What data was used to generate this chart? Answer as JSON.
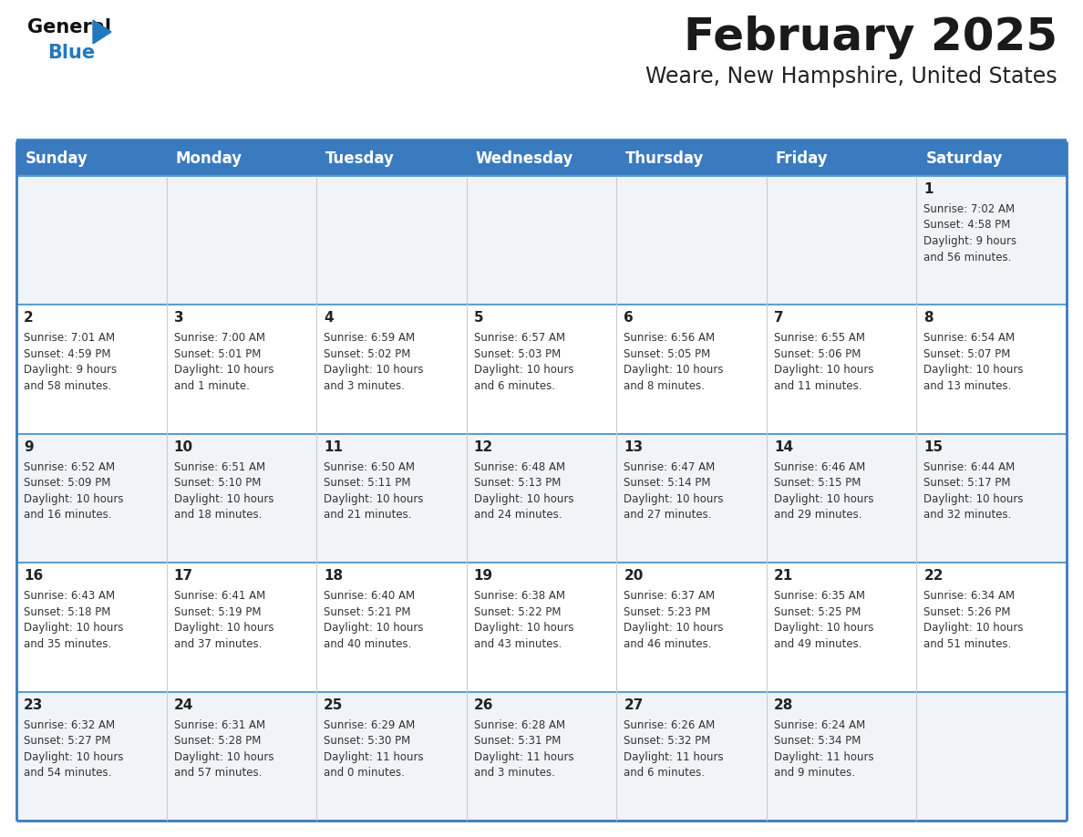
{
  "title": "February 2025",
  "subtitle": "Weare, New Hampshire, United States",
  "header_bg": "#3a7abf",
  "header_text": "#FFFFFF",
  "cell_bg_odd": "#f0f4f8",
  "cell_bg_even": "#FFFFFF",
  "border_color": "#3a7abf",
  "separator_color": "#5a9fd4",
  "day_headers": [
    "Sunday",
    "Monday",
    "Tuesday",
    "Wednesday",
    "Thursday",
    "Friday",
    "Saturday"
  ],
  "title_color": "#1a1a1a",
  "subtitle_color": "#222222",
  "day_num_color": "#222222",
  "info_color": "#333333",
  "logo_general_color": "#111111",
  "logo_blue_color": "#2278be",
  "calendar_data": [
    [
      null,
      null,
      null,
      null,
      null,
      null,
      {
        "day": 1,
        "sunrise": "7:02 AM",
        "sunset": "4:58 PM",
        "daylight_line1": "Daylight: 9 hours",
        "daylight_line2": "and 56 minutes."
      }
    ],
    [
      {
        "day": 2,
        "sunrise": "7:01 AM",
        "sunset": "4:59 PM",
        "daylight_line1": "Daylight: 9 hours",
        "daylight_line2": "and 58 minutes."
      },
      {
        "day": 3,
        "sunrise": "7:00 AM",
        "sunset": "5:01 PM",
        "daylight_line1": "Daylight: 10 hours",
        "daylight_line2": "and 1 minute."
      },
      {
        "day": 4,
        "sunrise": "6:59 AM",
        "sunset": "5:02 PM",
        "daylight_line1": "Daylight: 10 hours",
        "daylight_line2": "and 3 minutes."
      },
      {
        "day": 5,
        "sunrise": "6:57 AM",
        "sunset": "5:03 PM",
        "daylight_line1": "Daylight: 10 hours",
        "daylight_line2": "and 6 minutes."
      },
      {
        "day": 6,
        "sunrise": "6:56 AM",
        "sunset": "5:05 PM",
        "daylight_line1": "Daylight: 10 hours",
        "daylight_line2": "and 8 minutes."
      },
      {
        "day": 7,
        "sunrise": "6:55 AM",
        "sunset": "5:06 PM",
        "daylight_line1": "Daylight: 10 hours",
        "daylight_line2": "and 11 minutes."
      },
      {
        "day": 8,
        "sunrise": "6:54 AM",
        "sunset": "5:07 PM",
        "daylight_line1": "Daylight: 10 hours",
        "daylight_line2": "and 13 minutes."
      }
    ],
    [
      {
        "day": 9,
        "sunrise": "6:52 AM",
        "sunset": "5:09 PM",
        "daylight_line1": "Daylight: 10 hours",
        "daylight_line2": "and 16 minutes."
      },
      {
        "day": 10,
        "sunrise": "6:51 AM",
        "sunset": "5:10 PM",
        "daylight_line1": "Daylight: 10 hours",
        "daylight_line2": "and 18 minutes."
      },
      {
        "day": 11,
        "sunrise": "6:50 AM",
        "sunset": "5:11 PM",
        "daylight_line1": "Daylight: 10 hours",
        "daylight_line2": "and 21 minutes."
      },
      {
        "day": 12,
        "sunrise": "6:48 AM",
        "sunset": "5:13 PM",
        "daylight_line1": "Daylight: 10 hours",
        "daylight_line2": "and 24 minutes."
      },
      {
        "day": 13,
        "sunrise": "6:47 AM",
        "sunset": "5:14 PM",
        "daylight_line1": "Daylight: 10 hours",
        "daylight_line2": "and 27 minutes."
      },
      {
        "day": 14,
        "sunrise": "6:46 AM",
        "sunset": "5:15 PM",
        "daylight_line1": "Daylight: 10 hours",
        "daylight_line2": "and 29 minutes."
      },
      {
        "day": 15,
        "sunrise": "6:44 AM",
        "sunset": "5:17 PM",
        "daylight_line1": "Daylight: 10 hours",
        "daylight_line2": "and 32 minutes."
      }
    ],
    [
      {
        "day": 16,
        "sunrise": "6:43 AM",
        "sunset": "5:18 PM",
        "daylight_line1": "Daylight: 10 hours",
        "daylight_line2": "and 35 minutes."
      },
      {
        "day": 17,
        "sunrise": "6:41 AM",
        "sunset": "5:19 PM",
        "daylight_line1": "Daylight: 10 hours",
        "daylight_line2": "and 37 minutes."
      },
      {
        "day": 18,
        "sunrise": "6:40 AM",
        "sunset": "5:21 PM",
        "daylight_line1": "Daylight: 10 hours",
        "daylight_line2": "and 40 minutes."
      },
      {
        "day": 19,
        "sunrise": "6:38 AM",
        "sunset": "5:22 PM",
        "daylight_line1": "Daylight: 10 hours",
        "daylight_line2": "and 43 minutes."
      },
      {
        "day": 20,
        "sunrise": "6:37 AM",
        "sunset": "5:23 PM",
        "daylight_line1": "Daylight: 10 hours",
        "daylight_line2": "and 46 minutes."
      },
      {
        "day": 21,
        "sunrise": "6:35 AM",
        "sunset": "5:25 PM",
        "daylight_line1": "Daylight: 10 hours",
        "daylight_line2": "and 49 minutes."
      },
      {
        "day": 22,
        "sunrise": "6:34 AM",
        "sunset": "5:26 PM",
        "daylight_line1": "Daylight: 10 hours",
        "daylight_line2": "and 51 minutes."
      }
    ],
    [
      {
        "day": 23,
        "sunrise": "6:32 AM",
        "sunset": "5:27 PM",
        "daylight_line1": "Daylight: 10 hours",
        "daylight_line2": "and 54 minutes."
      },
      {
        "day": 24,
        "sunrise": "6:31 AM",
        "sunset": "5:28 PM",
        "daylight_line1": "Daylight: 10 hours",
        "daylight_line2": "and 57 minutes."
      },
      {
        "day": 25,
        "sunrise": "6:29 AM",
        "sunset": "5:30 PM",
        "daylight_line1": "Daylight: 11 hours",
        "daylight_line2": "and 0 minutes."
      },
      {
        "day": 26,
        "sunrise": "6:28 AM",
        "sunset": "5:31 PM",
        "daylight_line1": "Daylight: 11 hours",
        "daylight_line2": "and 3 minutes."
      },
      {
        "day": 27,
        "sunrise": "6:26 AM",
        "sunset": "5:32 PM",
        "daylight_line1": "Daylight: 11 hours",
        "daylight_line2": "and 6 minutes."
      },
      {
        "day": 28,
        "sunrise": "6:24 AM",
        "sunset": "5:34 PM",
        "daylight_line1": "Daylight: 11 hours",
        "daylight_line2": "and 9 minutes."
      },
      null
    ]
  ]
}
